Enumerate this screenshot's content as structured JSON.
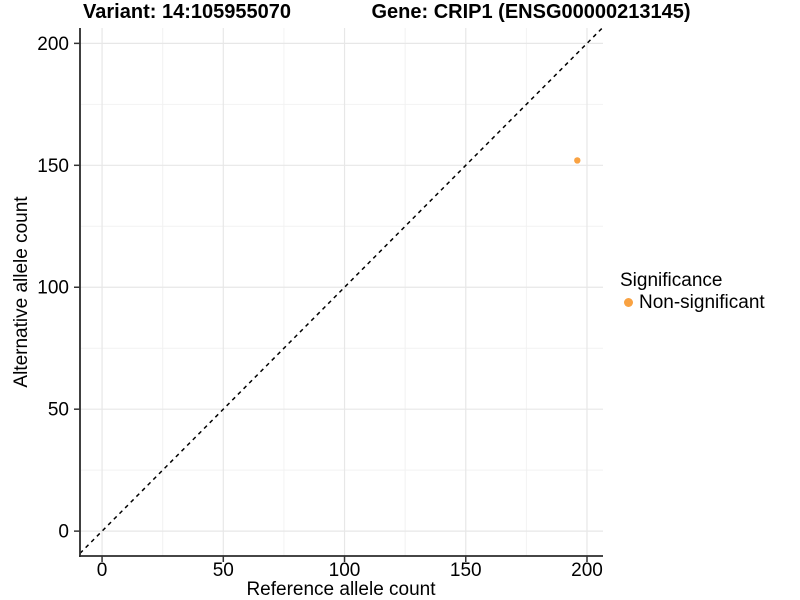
{
  "header": {
    "title_left": "Variant: 14:105955070",
    "title_right": "Gene: CRIP1 (ENSG00000213145)"
  },
  "chart_data": {
    "type": "scatter",
    "title_left": "Variant: 14:105955070",
    "title_right": "Gene: CRIP1 (ENSG00000213145)",
    "xlabel": "Reference allele count",
    "ylabel": "Alternative allele count",
    "xticks": [
      0,
      50,
      100,
      150,
      200
    ],
    "yticks": [
      0,
      50,
      100,
      150,
      200
    ],
    "xlim": [
      -9.1,
      206.6
    ],
    "ylim": [
      -10.2,
      206.3
    ],
    "minor_gridlines_x": [
      25,
      75,
      125,
      175
    ],
    "minor_gridlines_y": [
      25,
      75,
      125,
      175
    ],
    "grid": true,
    "identity_line": {
      "equation": "y = x",
      "style": "dashed",
      "color": "#000000"
    },
    "series": [
      {
        "name": "Non-significant",
        "color": "#F9A242",
        "points": [
          {
            "x": 196,
            "y": 152
          }
        ]
      }
    ],
    "legend": {
      "title": "Significance",
      "position": "right",
      "entries": [
        {
          "label": "Non-significant",
          "color": "#F9A242"
        }
      ]
    }
  }
}
